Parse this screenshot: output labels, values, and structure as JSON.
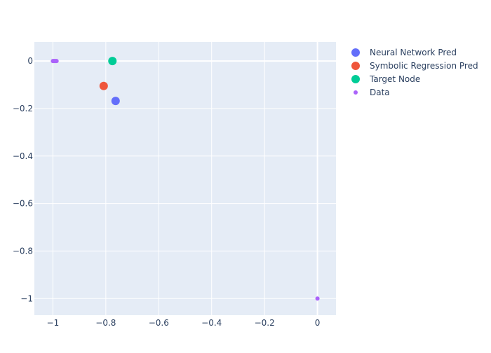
{
  "chart_data": {
    "type": "scatter",
    "title": "",
    "xlabel": "",
    "ylabel": "",
    "xlim": [
      -1.07,
      0.07
    ],
    "ylim": [
      -1.07,
      0.08
    ],
    "x_ticks": [
      {
        "value": -1,
        "label": "−1"
      },
      {
        "value": -0.8,
        "label": "−0.8"
      },
      {
        "value": -0.6,
        "label": "−0.6"
      },
      {
        "value": -0.4,
        "label": "−0.4"
      },
      {
        "value": -0.2,
        "label": "−0.2"
      },
      {
        "value": 0,
        "label": "0"
      }
    ],
    "y_ticks": [
      {
        "value": 0,
        "label": "0"
      },
      {
        "value": -0.2,
        "label": "−0.2"
      },
      {
        "value": -0.4,
        "label": "−0.4"
      },
      {
        "value": -0.6,
        "label": "−0.6"
      },
      {
        "value": -0.8,
        "label": "−0.8"
      },
      {
        "value": -1,
        "label": "−1"
      }
    ],
    "grid": true,
    "legend_position": "top-right",
    "plot_background": "#e5ecf6",
    "series": [
      {
        "name": "Neural Network Pred",
        "color": "#636efa",
        "marker": "large",
        "points": [
          {
            "x": -0.763,
            "y": -0.168
          }
        ]
      },
      {
        "name": "Symbolic Regression Pred",
        "color": "#ef553b",
        "marker": "large",
        "points": [
          {
            "x": -0.808,
            "y": -0.105
          }
        ]
      },
      {
        "name": "Target Node",
        "color": "#00cc96",
        "marker": "large",
        "points": [
          {
            "x": -0.775,
            "y": 0
          }
        ]
      },
      {
        "name": "Data",
        "color": "#ab63fa",
        "marker": "small",
        "points": [
          {
            "x": -1.0,
            "y": 0
          },
          {
            "x": -0.998,
            "y": 0
          },
          {
            "x": -0.995,
            "y": 0
          },
          {
            "x": -0.992,
            "y": 0
          },
          {
            "x": -0.989,
            "y": 0
          },
          {
            "x": -0.986,
            "y": 0
          },
          {
            "x": 0,
            "y": -1.0
          }
        ]
      }
    ]
  }
}
